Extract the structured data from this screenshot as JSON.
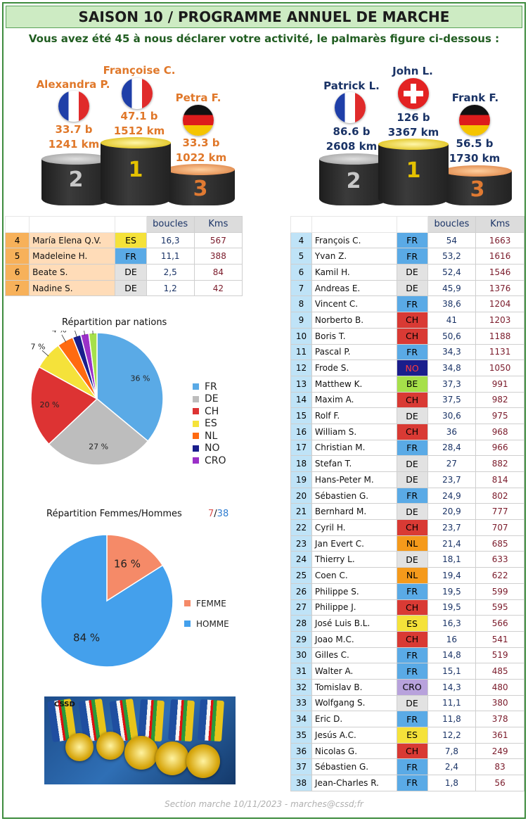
{
  "header": {
    "title": "SAISON 10 / PROGRAMME ANNUEL DE MARCHE",
    "subtitle": "Vous avez été 45 à nous déclarer votre activité, le palmarès figure ci-dessous :"
  },
  "women_podium": [
    {
      "rank": "2",
      "name": "Alexandra P.",
      "nation": "FR",
      "boucles": "33.7 b",
      "kms": "1241 km"
    },
    {
      "rank": "1",
      "name": "Françoise C.",
      "nation": "FR",
      "boucles": "47.1 b",
      "kms": "1512 km"
    },
    {
      "rank": "3",
      "name": "Petra F.",
      "nation": "DE",
      "boucles": "33.3 b",
      "kms": "1022 km"
    }
  ],
  "men_podium": [
    {
      "rank": "2",
      "name": "Patrick L.",
      "nation": "FR",
      "boucles": "86.6 b",
      "kms": "2608 km"
    },
    {
      "rank": "1",
      "name": "John L.",
      "nation": "CH",
      "boucles": "126 b",
      "kms": "3367 km"
    },
    {
      "rank": "3",
      "name": "Frank F.",
      "nation": "DE",
      "boucles": "56.5 b",
      "kms": "1730 km"
    }
  ],
  "columns": {
    "boucles": "boucles",
    "kms": "Kms"
  },
  "women_table": [
    {
      "rank": "4",
      "name": "María Elena Q.V.",
      "nation": "ES",
      "boucles": "16,3",
      "kms": "567"
    },
    {
      "rank": "5",
      "name": "Madeleine H.",
      "nation": "FR",
      "boucles": "11,1",
      "kms": "388"
    },
    {
      "rank": "6",
      "name": "Beate S.",
      "nation": "DE",
      "boucles": "2,5",
      "kms": "84"
    },
    {
      "rank": "7",
      "name": "Nadine S.",
      "nation": "DE",
      "boucles": "1,2",
      "kms": "42"
    }
  ],
  "men_table": [
    {
      "rank": "4",
      "name": "François C.",
      "nation": "FR",
      "boucles": "54",
      "kms": "1663"
    },
    {
      "rank": "5",
      "name": "Yvan Z.",
      "nation": "FR",
      "boucles": "53,2",
      "kms": "1616"
    },
    {
      "rank": "6",
      "name": "Kamil H.",
      "nation": "DE",
      "boucles": "52,4",
      "kms": "1546"
    },
    {
      "rank": "7",
      "name": "Andreas E.",
      "nation": "DE",
      "boucles": "45,9",
      "kms": "1376"
    },
    {
      "rank": "8",
      "name": "Vincent C.",
      "nation": "FR",
      "boucles": "38,6",
      "kms": "1204"
    },
    {
      "rank": "9",
      "name": "Norberto B.",
      "nation": "CH",
      "boucles": "41",
      "kms": "1203"
    },
    {
      "rank": "10",
      "name": "Boris T.",
      "nation": "CH",
      "boucles": "50,6",
      "kms": "1188"
    },
    {
      "rank": "11",
      "name": "Pascal  P.",
      "nation": "FR",
      "boucles": "34,3",
      "kms": "1131"
    },
    {
      "rank": "12",
      "name": "Frode S.",
      "nation": "NO",
      "boucles": "34,8",
      "kms": "1050"
    },
    {
      "rank": "13",
      "name": "Matthew K.",
      "nation": "BE",
      "boucles": "37,3",
      "kms": "991"
    },
    {
      "rank": "14",
      "name": "Maxim A.",
      "nation": "CH",
      "boucles": "37,5",
      "kms": "982"
    },
    {
      "rank": "15",
      "name": "Rolf F.",
      "nation": "DE",
      "boucles": "30,6",
      "kms": "975"
    },
    {
      "rank": "16",
      "name": "William S.",
      "nation": "CH",
      "boucles": "36",
      "kms": "968"
    },
    {
      "rank": "17",
      "name": "Christian M.",
      "nation": "FR",
      "boucles": "28,4",
      "kms": "966"
    },
    {
      "rank": "18",
      "name": "Stefan T.",
      "nation": "DE",
      "boucles": "27",
      "kms": "882"
    },
    {
      "rank": "19",
      "name": "Hans-Peter M.",
      "nation": "DE",
      "boucles": "23,7",
      "kms": "814"
    },
    {
      "rank": "20",
      "name": "Sébastien G.",
      "nation": "FR",
      "boucles": "24,9",
      "kms": "802"
    },
    {
      "rank": "21",
      "name": "Bernhard M.",
      "nation": "DE",
      "boucles": "20,9",
      "kms": "777"
    },
    {
      "rank": "22",
      "name": "Cyril H.",
      "nation": "CH",
      "boucles": "23,7",
      "kms": "707"
    },
    {
      "rank": "23",
      "name": "Jan Evert C.",
      "nation": "NL",
      "boucles": "21,4",
      "kms": "685"
    },
    {
      "rank": "24",
      "name": "Thierry L.",
      "nation": "DE",
      "boucles": "18,1",
      "kms": "633"
    },
    {
      "rank": "25",
      "name": "Coen C.",
      "nation": "NL",
      "boucles": "19,4",
      "kms": "622"
    },
    {
      "rank": "26",
      "name": "Philippe S.",
      "nation": "FR",
      "boucles": "19,5",
      "kms": "599"
    },
    {
      "rank": "27",
      "name": "Philippe J.",
      "nation": "CH",
      "boucles": "19,5",
      "kms": "595"
    },
    {
      "rank": "28",
      "name": "José Luis B.L.",
      "nation": "ES",
      "boucles": "16,3",
      "kms": "566"
    },
    {
      "rank": "29",
      "name": "Joao M.C.",
      "nation": "CH",
      "boucles": "16",
      "kms": "541"
    },
    {
      "rank": "30",
      "name": "Gilles C.",
      "nation": "FR",
      "boucles": "14,8",
      "kms": "519"
    },
    {
      "rank": "31",
      "name": "Walter A.",
      "nation": "FR",
      "boucles": "15,1",
      "kms": "485"
    },
    {
      "rank": "32",
      "name": "Tomislav B.",
      "nation": "CRO",
      "boucles": "14,3",
      "kms": "480"
    },
    {
      "rank": "33",
      "name": "Wolfgang S.",
      "nation": "DE",
      "boucles": "11,1",
      "kms": "380"
    },
    {
      "rank": "34",
      "name": "Eric D.",
      "nation": "FR",
      "boucles": "11,8",
      "kms": "378"
    },
    {
      "rank": "35",
      "name": "Jesús A.C.",
      "nation": "ES",
      "boucles": "12,2",
      "kms": "361"
    },
    {
      "rank": "36",
      "name": "Nicolas G.",
      "nation": "CH",
      "boucles": "7,8",
      "kms": "249"
    },
    {
      "rank": "37",
      "name": "Sébastien G.",
      "nation": "FR",
      "boucles": "2,4",
      "kms": "83"
    },
    {
      "rank": "38",
      "name": "Jean-Charles R.",
      "nation": "FR",
      "boucles": "1,8",
      "kms": "56"
    }
  ],
  "nation_colors": {
    "FR": "#5aaae6",
    "DE": "#e2e2e2",
    "CH": "#d93a34",
    "ES": "#f5e23a",
    "NL": "#f59a1b",
    "NO": "#1a1e8c",
    "BE": "#a6e04a",
    "CRO": "#b8a2dc"
  },
  "chart_data": [
    {
      "type": "pie",
      "title": "Répartition par nations",
      "categories": [
        "FR",
        "DE",
        "CH",
        "ES",
        "NL",
        "NO",
        "CRO",
        "BE"
      ],
      "legend": [
        "FR",
        "DE",
        "CH",
        "ES",
        "NL",
        "NO",
        "CRO"
      ],
      "values": [
        36,
        27,
        20,
        7,
        4,
        2,
        2,
        2
      ],
      "labels": [
        "36 %",
        "27 %",
        "20 %",
        "7 %",
        "4 %",
        "2 %",
        "2 %",
        "2 %"
      ],
      "colors": [
        "#5aaae6",
        "#bdbdbd",
        "#dd3333",
        "#f5e23a",
        "#ff6a10",
        "#1a1e8c",
        "#9b30c8",
        "#a6e04a"
      ],
      "legend_position": "right"
    },
    {
      "type": "pie",
      "title": "Répartition Femmes/Hommes",
      "count_women": "7",
      "count_sep": "/",
      "count_men": "38",
      "categories": [
        "FEMME",
        "HOMME"
      ],
      "values": [
        16,
        84
      ],
      "labels": [
        "16 %",
        "84 %"
      ],
      "colors": [
        "#f58a68",
        "#44a0ec"
      ],
      "legend_position": "right"
    }
  ],
  "medals": {
    "ribbon_text": "CSSD"
  },
  "footer": {
    "text": "Section marche 10/11/2023   -  marches@cssd;fr"
  }
}
